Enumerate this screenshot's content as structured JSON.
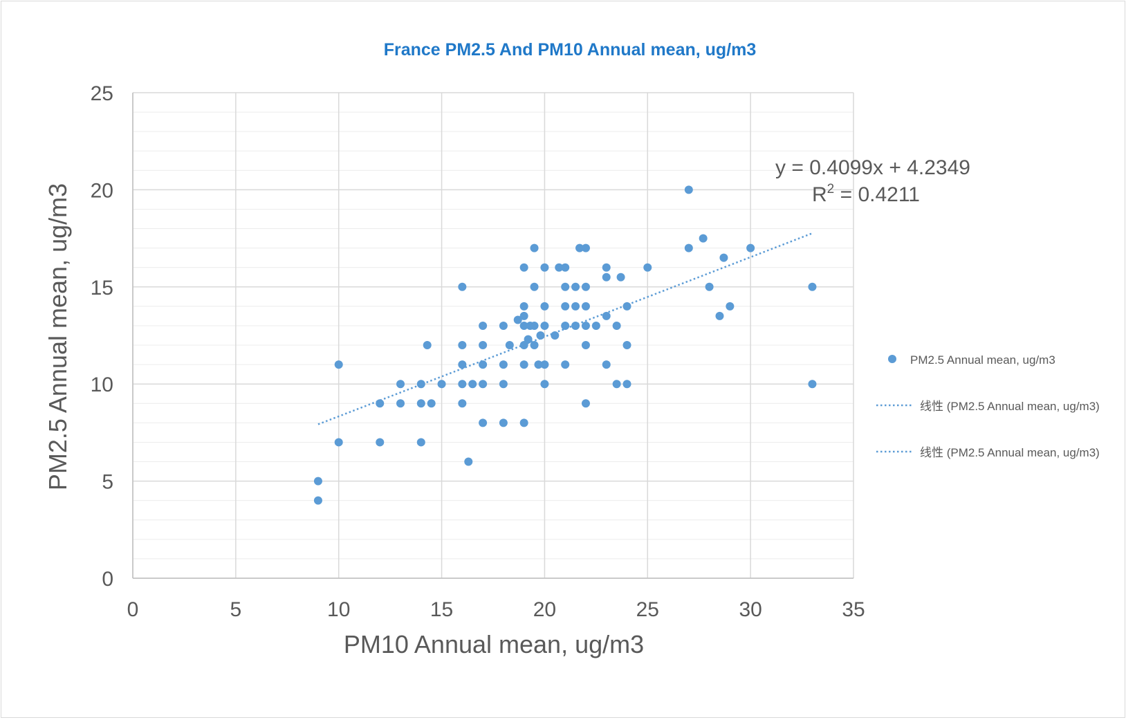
{
  "chart_data": {
    "type": "scatter",
    "title": "France PM2.5 And PM10 Annual mean, ug/m3",
    "xlabel": "PM10 Annual mean, ug/m3",
    "ylabel": "PM2.5 Annual mean, ug/m3",
    "xlim": [
      0,
      35
    ],
    "ylim": [
      0,
      25
    ],
    "xticks": [
      0,
      5,
      10,
      15,
      20,
      25,
      30,
      35
    ],
    "yticks": [
      0,
      5,
      10,
      15,
      20,
      25
    ],
    "x_tick_labels": [
      "0",
      "5",
      "10",
      "15",
      "20",
      "25",
      "30",
      "35"
    ],
    "y_tick_labels": [
      "0",
      "5",
      "10",
      "15",
      "20",
      "25"
    ],
    "grid": true,
    "legend_position": "right",
    "colors": {
      "marker": "#5b9bd5",
      "trend": "#5b9bd5",
      "title": "#1f78c8",
      "grid": "#d9d9d9"
    },
    "series": [
      {
        "name": "PM2.5 Annual mean, ug/m3",
        "points": [
          [
            9,
            5
          ],
          [
            9,
            4
          ],
          [
            10,
            11
          ],
          [
            10,
            7
          ],
          [
            12,
            9
          ],
          [
            12,
            7
          ],
          [
            13,
            10
          ],
          [
            13,
            9
          ],
          [
            14,
            10
          ],
          [
            14,
            9
          ],
          [
            14,
            7
          ],
          [
            14.3,
            12
          ],
          [
            14.5,
            9
          ],
          [
            15,
            10
          ],
          [
            16,
            15
          ],
          [
            16,
            12
          ],
          [
            16,
            11
          ],
          [
            16,
            10
          ],
          [
            16,
            9
          ],
          [
            16.3,
            6
          ],
          [
            16.5,
            10
          ],
          [
            17,
            13
          ],
          [
            17,
            12
          ],
          [
            17,
            11
          ],
          [
            17,
            10
          ],
          [
            17,
            8
          ],
          [
            18,
            13
          ],
          [
            18,
            11
          ],
          [
            18,
            10
          ],
          [
            18,
            8
          ],
          [
            18.3,
            12
          ],
          [
            18.7,
            13.3
          ],
          [
            19,
            16
          ],
          [
            19,
            14
          ],
          [
            19,
            13.5
          ],
          [
            19,
            13
          ],
          [
            19,
            12
          ],
          [
            19,
            11
          ],
          [
            19,
            8
          ],
          [
            19.2,
            12.3
          ],
          [
            19.3,
            13
          ],
          [
            19.5,
            17
          ],
          [
            19.5,
            15
          ],
          [
            19.5,
            13
          ],
          [
            19.5,
            12
          ],
          [
            19.7,
            11
          ],
          [
            19.8,
            12.5
          ],
          [
            20,
            16
          ],
          [
            20,
            14
          ],
          [
            20,
            13
          ],
          [
            20,
            11
          ],
          [
            20,
            10
          ],
          [
            20.5,
            12.5
          ],
          [
            20.7,
            16
          ],
          [
            21,
            16
          ],
          [
            21,
            15
          ],
          [
            21,
            14
          ],
          [
            21,
            13
          ],
          [
            21,
            11
          ],
          [
            21.5,
            15
          ],
          [
            21.5,
            14
          ],
          [
            21.5,
            13
          ],
          [
            21.7,
            17
          ],
          [
            22,
            17
          ],
          [
            22,
            15
          ],
          [
            22,
            14
          ],
          [
            22,
            13
          ],
          [
            22,
            12
          ],
          [
            22,
            9
          ],
          [
            22.5,
            13
          ],
          [
            23,
            16
          ],
          [
            23,
            15.5
          ],
          [
            23,
            13.5
          ],
          [
            23,
            11
          ],
          [
            23.5,
            13
          ],
          [
            23.5,
            10
          ],
          [
            23.7,
            15.5
          ],
          [
            24,
            14
          ],
          [
            24,
            12
          ],
          [
            24,
            10
          ],
          [
            25,
            16
          ],
          [
            27,
            20
          ],
          [
            27,
            17
          ],
          [
            27.7,
            17.5
          ],
          [
            28,
            15
          ],
          [
            28.5,
            13.5
          ],
          [
            28.7,
            16.5
          ],
          [
            29,
            14
          ],
          [
            30,
            17
          ],
          [
            33,
            15
          ],
          [
            33,
            10
          ]
        ]
      }
    ],
    "trendline": {
      "slope": 0.4099,
      "intercept": 4.2349,
      "x_range": [
        9,
        33
      ],
      "equation": "y = 0.4099x + 4.2349",
      "r2_label": "R",
      "r2_sup": "2",
      "r2_value": " = 0.4211"
    },
    "legend": [
      {
        "type": "marker",
        "label": "PM2.5 Annual mean, ug/m3"
      },
      {
        "type": "line",
        "label": "线性 (PM2.5 Annual mean, ug/m3)"
      },
      {
        "type": "line",
        "label": "线性 (PM2.5 Annual mean, ug/m3)"
      }
    ]
  }
}
